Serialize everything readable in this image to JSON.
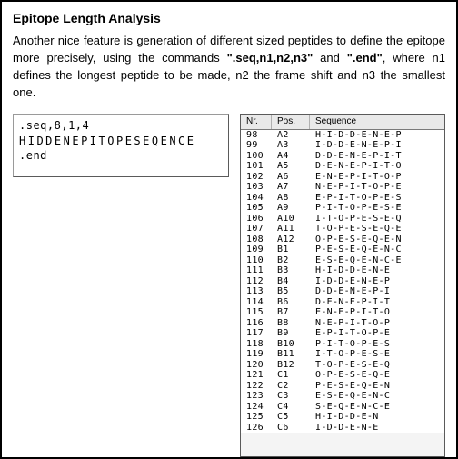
{
  "heading": "Epitope Length Analysis",
  "paragraph_parts": [
    "Another nice feature is generation of different sized peptides to define the epitope more precisely, using the commands ",
    "\".seq,n1,n2,n3\"",
    " and ",
    "\".end\"",
    ", where n1 defines the longest peptide to be made, n2 the frame shift and n3 the smallest one."
  ],
  "input_lines": {
    "l1": ".seq,8,1,4",
    "l2": "HIDDENEPITOPESEQENCE",
    "l3": ".end"
  },
  "output_headers": {
    "c1": "Nr.",
    "c2": "Pos.",
    "c3": "Sequence"
  },
  "rows": [
    {
      "nr": "98",
      "pos": "A2",
      "seq": "H-I-D-D-E-N-E-P"
    },
    {
      "nr": "99",
      "pos": "A3",
      "seq": "I-D-D-E-N-E-P-I"
    },
    {
      "nr": "100",
      "pos": "A4",
      "seq": "D-D-E-N-E-P-I-T"
    },
    {
      "nr": "101",
      "pos": "A5",
      "seq": "D-E-N-E-P-I-T-O"
    },
    {
      "nr": "102",
      "pos": "A6",
      "seq": "E-N-E-P-I-T-O-P"
    },
    {
      "nr": "103",
      "pos": "A7",
      "seq": "N-E-P-I-T-O-P-E"
    },
    {
      "nr": "104",
      "pos": "A8",
      "seq": "E-P-I-T-O-P-E-S"
    },
    {
      "nr": "105",
      "pos": "A9",
      "seq": "P-I-T-O-P-E-S-E"
    },
    {
      "nr": "106",
      "pos": "A10",
      "seq": "I-T-O-P-E-S-E-Q"
    },
    {
      "nr": "107",
      "pos": "A11",
      "seq": "T-O-P-E-S-E-Q-E"
    },
    {
      "nr": "108",
      "pos": "A12",
      "seq": "O-P-E-S-E-Q-E-N"
    },
    {
      "nr": "109",
      "pos": "B1",
      "seq": "P-E-S-E-Q-E-N-C"
    },
    {
      "nr": "110",
      "pos": "B2",
      "seq": "E-S-E-Q-E-N-C-E"
    },
    {
      "nr": "111",
      "pos": "B3",
      "seq": "H-I-D-D-E-N-E"
    },
    {
      "nr": "112",
      "pos": "B4",
      "seq": "I-D-D-E-N-E-P"
    },
    {
      "nr": "113",
      "pos": "B5",
      "seq": "D-D-E-N-E-P-I"
    },
    {
      "nr": "114",
      "pos": "B6",
      "seq": "D-E-N-E-P-I-T"
    },
    {
      "nr": "115",
      "pos": "B7",
      "seq": "E-N-E-P-I-T-O"
    },
    {
      "nr": "116",
      "pos": "B8",
      "seq": "N-E-P-I-T-O-P"
    },
    {
      "nr": "117",
      "pos": "B9",
      "seq": "E-P-I-T-O-P-E"
    },
    {
      "nr": "118",
      "pos": "B10",
      "seq": "P-I-T-O-P-E-S"
    },
    {
      "nr": "119",
      "pos": "B11",
      "seq": "I-T-O-P-E-S-E"
    },
    {
      "nr": "120",
      "pos": "B12",
      "seq": "T-O-P-E-S-E-Q"
    },
    {
      "nr": "121",
      "pos": "C1",
      "seq": "O-P-E-S-E-Q-E"
    },
    {
      "nr": "122",
      "pos": "C2",
      "seq": "P-E-S-E-Q-E-N"
    },
    {
      "nr": "123",
      "pos": "C3",
      "seq": "E-S-E-Q-E-N-C"
    },
    {
      "nr": "124",
      "pos": "C4",
      "seq": "S-E-Q-E-N-C-E"
    },
    {
      "nr": "125",
      "pos": "C5",
      "seq": "H-I-D-D-E-N"
    },
    {
      "nr": "126",
      "pos": "C6",
      "seq": "I-D-D-E-N-E"
    }
  ]
}
